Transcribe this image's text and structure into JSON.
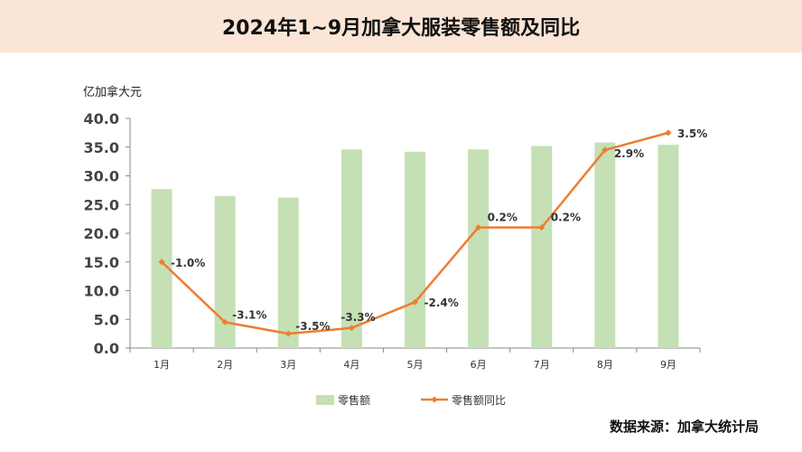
{
  "chart_data": {
    "type": "bar",
    "title": "2024年1~9月加拿大服装零售额及同比",
    "ylabel": "亿加拿大元",
    "ylim": [
      0,
      40
    ],
    "yticks": [
      "0.0",
      "5.0",
      "10.0",
      "15.0",
      "20.0",
      "25.0",
      "30.0",
      "35.0",
      "40.0"
    ],
    "y2lim": [
      -4,
      4
    ],
    "categories": [
      "1月",
      "2月",
      "3月",
      "4月",
      "5月",
      "6月",
      "7月",
      "8月",
      "9月"
    ],
    "series": [
      {
        "name": "零售额",
        "type": "bar",
        "color": "#c5e0b4",
        "values": [
          27.7,
          26.5,
          26.2,
          34.6,
          34.2,
          34.6,
          35.2,
          35.8,
          35.4
        ]
      },
      {
        "name": "零售额同比",
        "type": "line",
        "axis": "secondary",
        "color": "#ed7d31",
        "values": [
          -1.0,
          -3.1,
          -3.5,
          -3.3,
          -2.4,
          0.2,
          0.2,
          2.9,
          3.5
        ],
        "labels": [
          "-1.0%",
          "-3.1%",
          "-3.5%",
          "-3.3%",
          "-2.4%",
          "0.2%",
          "0.2%",
          "2.9%",
          "3.5%"
        ]
      }
    ],
    "legend": "bottom",
    "grid": false
  },
  "source": "数据来源：加拿大统计局"
}
